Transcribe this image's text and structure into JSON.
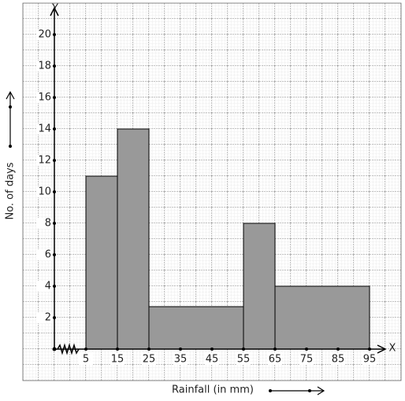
{
  "chart_data": {
    "type": "histogram",
    "x_label": "Rainfall (in mm)",
    "y_label": "No. of days",
    "x_axis_name": "X",
    "y_axis_name": "Y",
    "bins": [
      5,
      15,
      25,
      55,
      65,
      95
    ],
    "counts": [
      11,
      14,
      2.7,
      8,
      4
    ],
    "color": "#999999",
    "xlim": [
      5,
      100
    ],
    "xticks": [
      5,
      15,
      25,
      35,
      45,
      55,
      65,
      75,
      85,
      95
    ],
    "ylim": [
      0,
      21.7
    ],
    "yticks": [
      2,
      4,
      6,
      8,
      10,
      12,
      14,
      16,
      18,
      20
    ]
  }
}
